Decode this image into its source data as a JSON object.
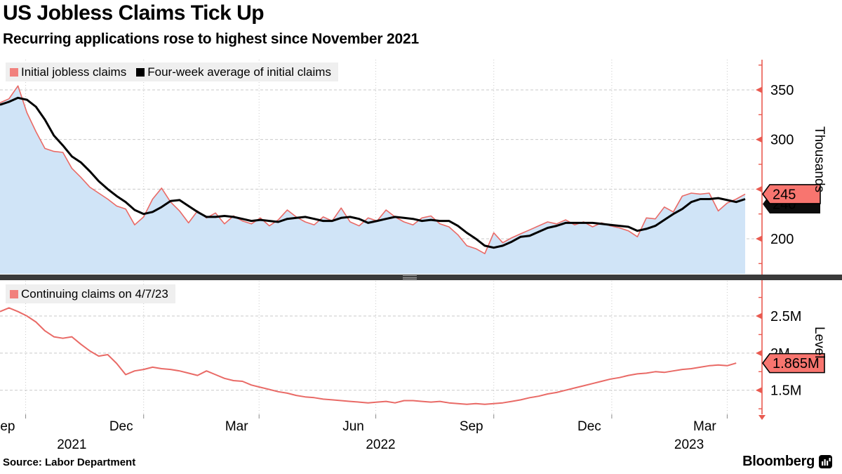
{
  "header": {
    "title": "US Jobless Claims Tick Up",
    "subtitle": "Recurring applications rose to highest since November 2021"
  },
  "source": "Source: Labor Department",
  "branding": {
    "logo_text": "Bloomberg"
  },
  "colors": {
    "claims_line": "#e96a66",
    "area_fill": "#d0e4f7",
    "avg_line": "#000000",
    "axis_red": "#e95a50",
    "badge_red": "#f8756f",
    "badge_black": "#0c0c0c",
    "grid": "#c9c9c9",
    "legend_bg": "#efefef",
    "separator": "#3a3a3a"
  },
  "chart_data": [
    {
      "type": "area",
      "panel": "top",
      "ylabel": "Thousands",
      "yticks": [
        {
          "v": 350,
          "label": "350"
        },
        {
          "v": 300,
          "label": "300"
        },
        {
          "v": 250,
          "label": "250"
        },
        {
          "v": 200,
          "label": "200"
        }
      ],
      "yticks_minor": [
        375,
        325,
        275,
        225,
        175
      ],
      "ylim": [
        165,
        380
      ],
      "legend": [
        "Initial jobless claims",
        "Four-week average of initial claims"
      ],
      "series": [
        {
          "name": "Initial jobless claims",
          "style": "area_line",
          "values": [
            337,
            341,
            354,
            327,
            308,
            291,
            288,
            287,
            271,
            262,
            252,
            246,
            240,
            233,
            230,
            214,
            222,
            240,
            251,
            237,
            228,
            216,
            228,
            221,
            226,
            215,
            223,
            218,
            215,
            221,
            213,
            219,
            229,
            222,
            217,
            214,
            222,
            218,
            231,
            217,
            213,
            221,
            218,
            229,
            222,
            217,
            214,
            221,
            223,
            215,
            212,
            204,
            193,
            190,
            185,
            206,
            196,
            201,
            205,
            209,
            213,
            217,
            215,
            219,
            214,
            217,
            212,
            216,
            213,
            211,
            208,
            202,
            221,
            220,
            232,
            227,
            243,
            246,
            245,
            246,
            228,
            236,
            240,
            245
          ]
        },
        {
          "name": "Four-week average of initial claims",
          "style": "line",
          "values": [
            335,
            338,
            342,
            340,
            333,
            320,
            304,
            294,
            283,
            277,
            268,
            258,
            250,
            243,
            237,
            229,
            225,
            227,
            232,
            238,
            239,
            233,
            227,
            222,
            222,
            223,
            222,
            220,
            218,
            219,
            218,
            217,
            220,
            221,
            222,
            220,
            218,
            218,
            221,
            222,
            220,
            216,
            218,
            220,
            222,
            221,
            220,
            218,
            219,
            218,
            218,
            213,
            206,
            200,
            193,
            191,
            193,
            197,
            202,
            203,
            207,
            211,
            213,
            216,
            216,
            216,
            216,
            215,
            214,
            213,
            212,
            208,
            210,
            213,
            219,
            225,
            230,
            237,
            240,
            240,
            241,
            239,
            237,
            240
          ]
        }
      ],
      "markers": [
        {
          "text": "245",
          "fill": "badge_red",
          "value": 245,
          "text_color": "#000"
        },
        {
          "text": "240",
          "fill": "badge_black",
          "value": 240,
          "text_color": "#fff"
        }
      ]
    },
    {
      "type": "line",
      "panel": "bottom",
      "ylabel": "Level",
      "yticks": [
        {
          "v": 2.5,
          "label": "2.5M"
        },
        {
          "v": 2.0,
          "label": "2M"
        },
        {
          "v": 1.5,
          "label": "1.5M"
        }
      ],
      "yticks_minor": [
        2.75,
        2.25,
        1.75,
        1.25
      ],
      "ylim": [
        1.2,
        2.8
      ],
      "legend": [
        "Continuing claims on 4/7/23"
      ],
      "series": [
        {
          "name": "Continuing claims on 4/7/23",
          "style": "line",
          "values": [
            2.56,
            2.61,
            2.56,
            2.5,
            2.42,
            2.3,
            2.22,
            2.2,
            2.22,
            2.12,
            2.03,
            1.96,
            1.98,
            1.86,
            1.71,
            1.76,
            1.78,
            1.81,
            1.79,
            1.78,
            1.76,
            1.73,
            1.7,
            1.76,
            1.71,
            1.66,
            1.63,
            1.62,
            1.57,
            1.54,
            1.51,
            1.48,
            1.46,
            1.43,
            1.41,
            1.4,
            1.38,
            1.37,
            1.36,
            1.35,
            1.34,
            1.33,
            1.34,
            1.35,
            1.33,
            1.36,
            1.36,
            1.35,
            1.34,
            1.35,
            1.33,
            1.32,
            1.31,
            1.32,
            1.31,
            1.32,
            1.33,
            1.35,
            1.37,
            1.4,
            1.42,
            1.45,
            1.47,
            1.5,
            1.53,
            1.56,
            1.59,
            1.62,
            1.65,
            1.67,
            1.7,
            1.72,
            1.73,
            1.75,
            1.74,
            1.76,
            1.78,
            1.79,
            1.81,
            1.83,
            1.84,
            1.83,
            1.865
          ]
        }
      ],
      "markers": [
        {
          "text": "1.865M",
          "fill": "badge_red",
          "value": 1.865,
          "text_color": "#000"
        }
      ]
    }
  ],
  "xaxis": {
    "unit": "weekly",
    "gridline_weeks": [
      2.857,
      16.0,
      28.857,
      41.857,
      55.0,
      68.143,
      81.0
    ],
    "month_ticks": [
      {
        "label": "Sep",
        "week": 2.857
      },
      {
        "label": "Dec",
        "week": 16.0
      },
      {
        "label": "Mar",
        "week": 28.857
      },
      {
        "label": "Jun",
        "week": 41.857
      },
      {
        "label": "Sep",
        "week": 55.0
      },
      {
        "label": "Dec",
        "week": 68.143
      },
      {
        "label": "Mar",
        "week": 81.0
      }
    ],
    "year_ticks": [
      {
        "label": "2021",
        "week": 8.0
      },
      {
        "label": "2022",
        "week": 42.4
      },
      {
        "label": "2023",
        "week": 76.75
      }
    ]
  }
}
